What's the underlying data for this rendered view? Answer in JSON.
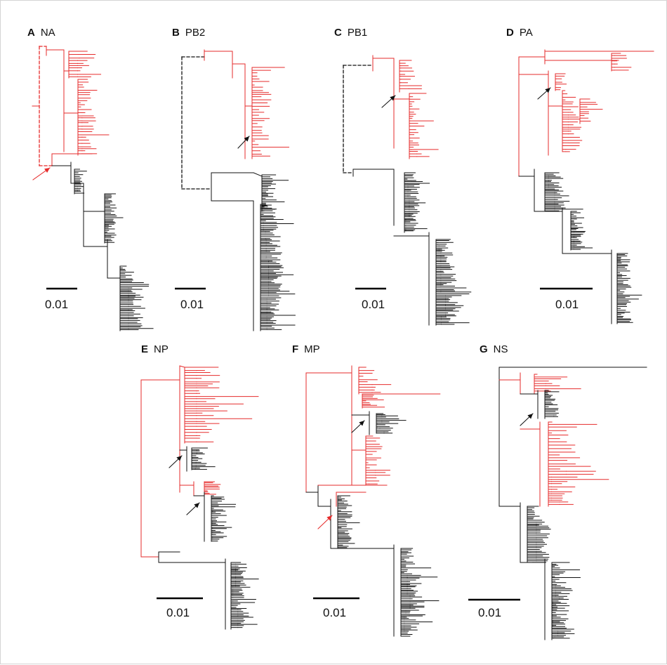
{
  "colors": {
    "red": "#e62b2b",
    "black": "#111111"
  },
  "panels": [
    {
      "letter": "A",
      "gene": "NA",
      "scale": "0.01"
    },
    {
      "letter": "B",
      "gene": "PB2",
      "scale": "0.01"
    },
    {
      "letter": "C",
      "gene": "PB1",
      "scale": "0.01"
    },
    {
      "letter": "D",
      "gene": "PA",
      "scale": "0.01"
    },
    {
      "letter": "E",
      "gene": "NP",
      "scale": "0.01"
    },
    {
      "letter": "F",
      "gene": "MP",
      "scale": "0.01"
    },
    {
      "letter": "G",
      "gene": "NS",
      "scale": "0.01"
    }
  ]
}
